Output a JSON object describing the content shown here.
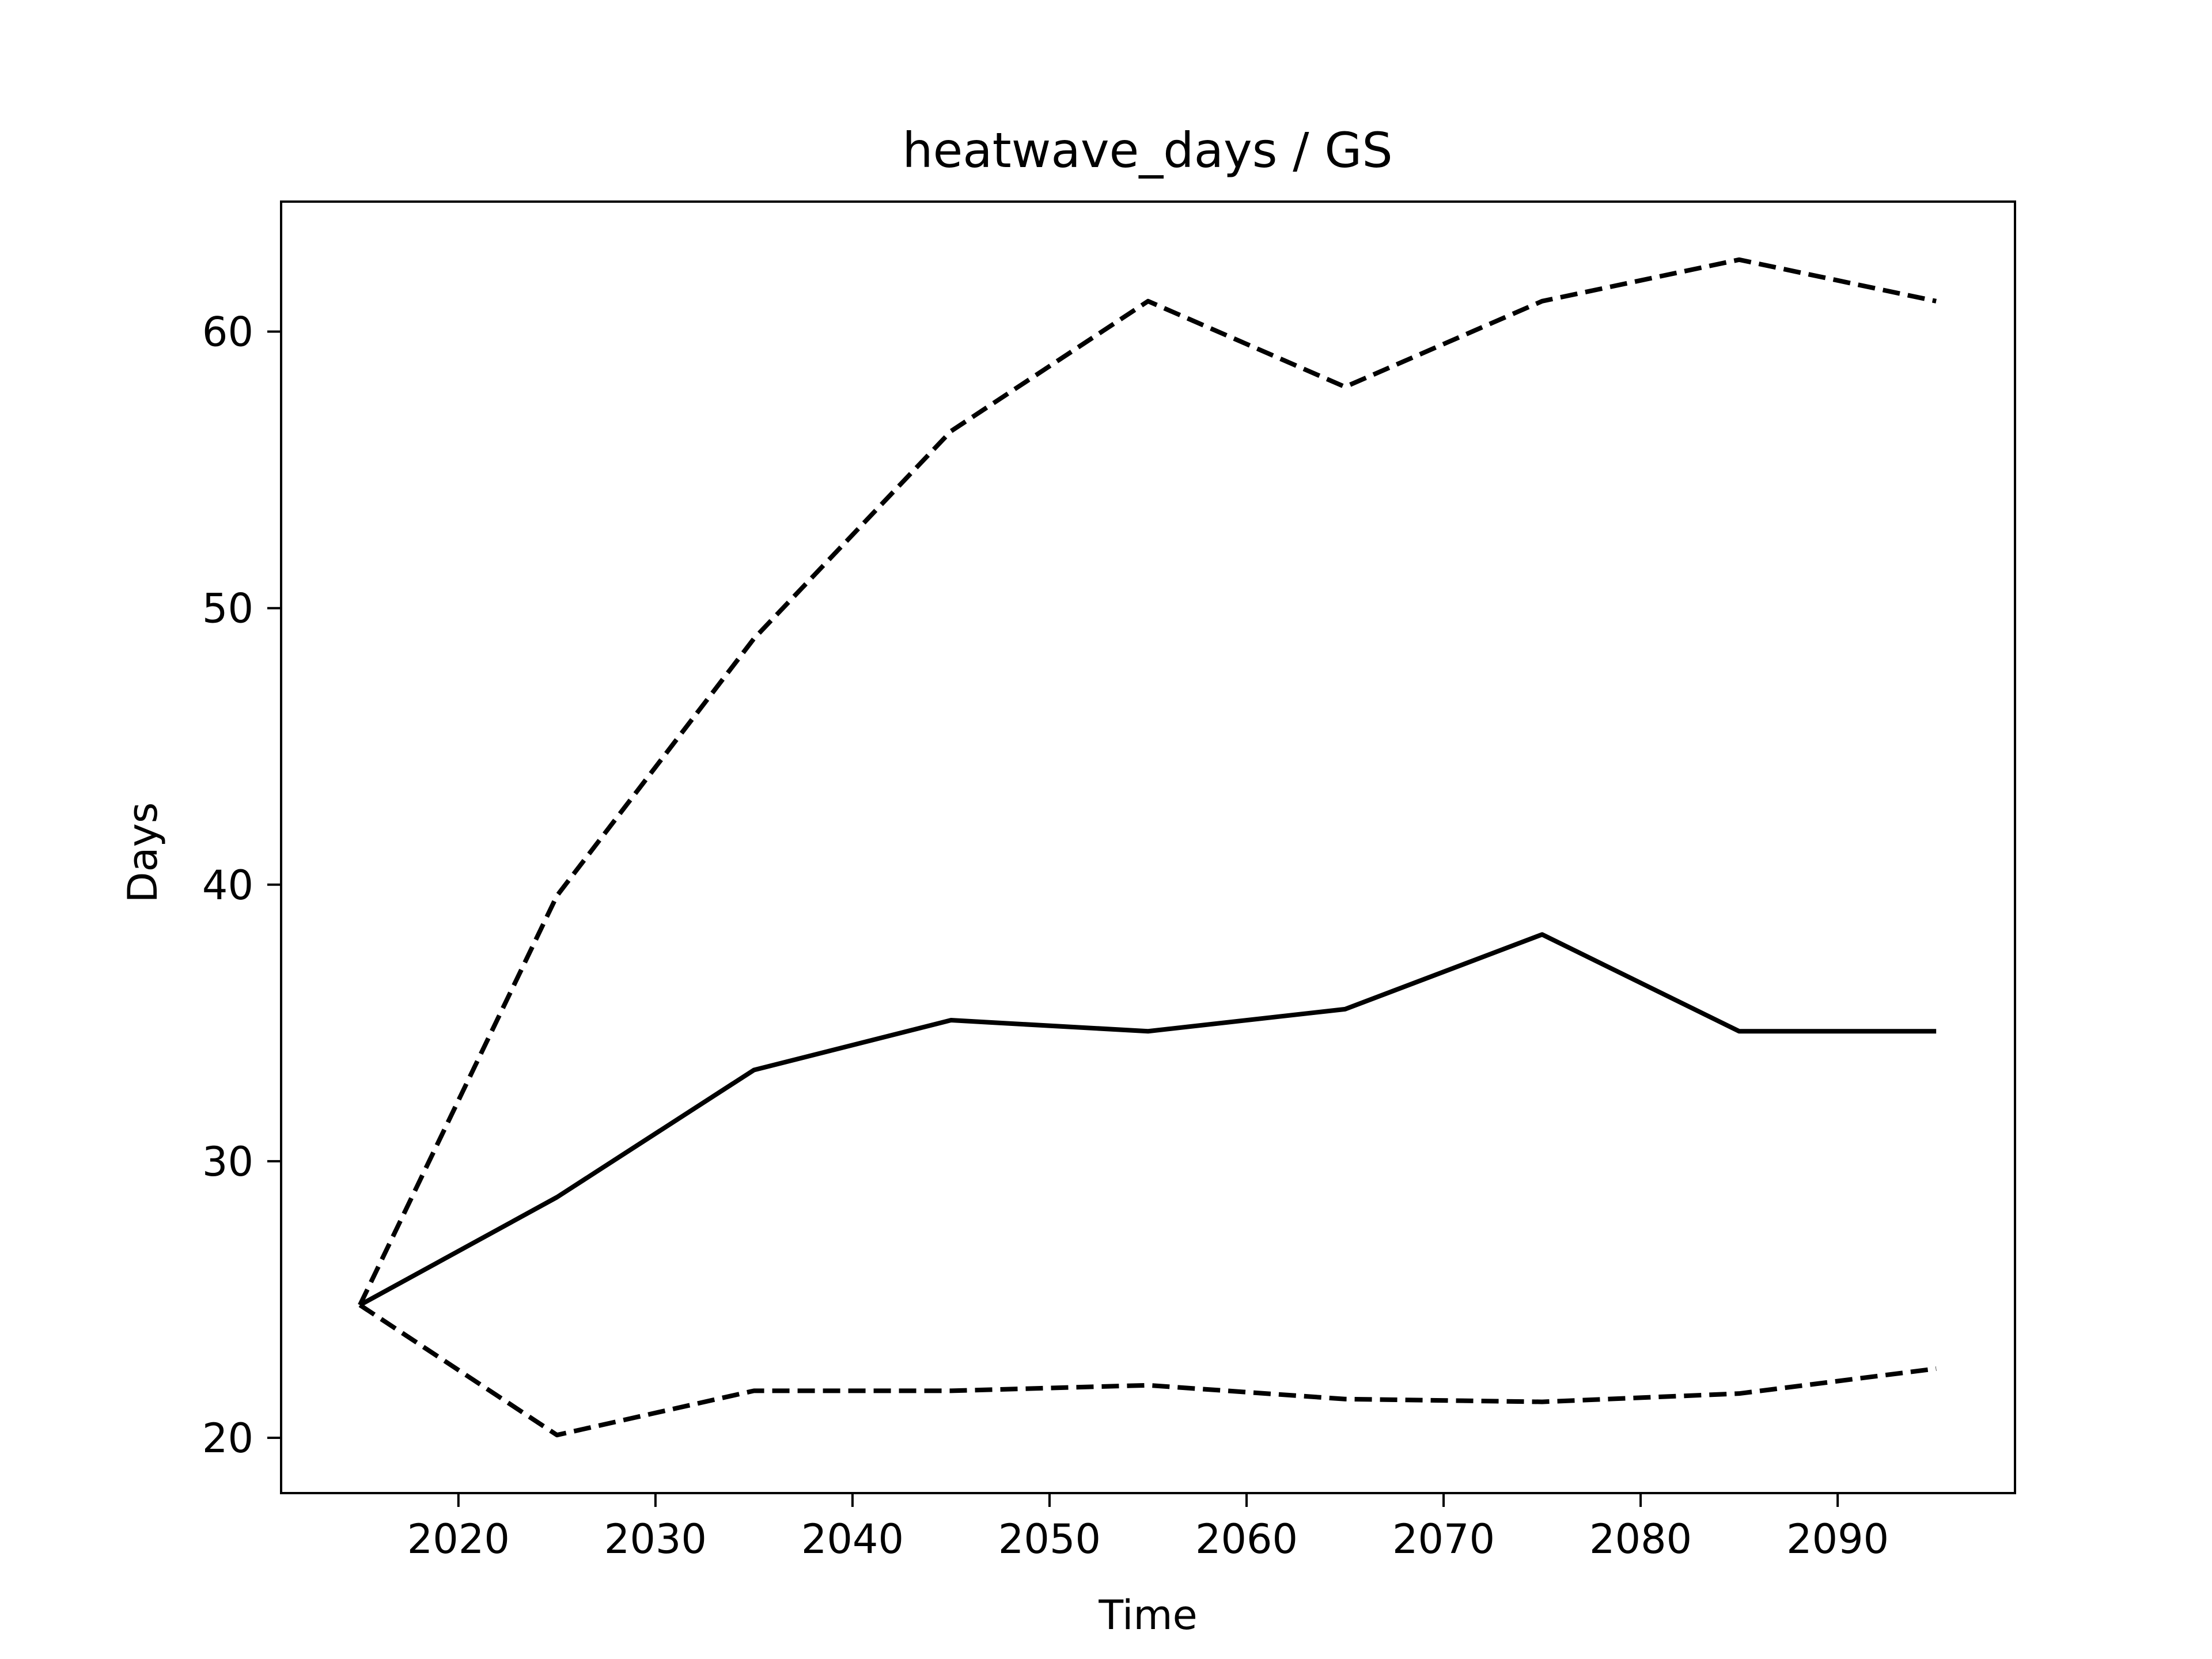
{
  "chart_data": {
    "type": "line",
    "title": "heatwave_days / GS",
    "xlabel": "Time",
    "ylabel": "Days",
    "xlim": [
      2011,
      2099
    ],
    "ylim": [
      18,
      64.7
    ],
    "xticks": [
      2020,
      2030,
      2040,
      2050,
      2060,
      2070,
      2080,
      2090
    ],
    "yticks": [
      20,
      30,
      40,
      50,
      60
    ],
    "grid": false,
    "legend": "none",
    "x": [
      2015,
      2025,
      2035,
      2045,
      2055,
      2065,
      2075,
      2085,
      2095
    ],
    "series": [
      {
        "style": "solid",
        "color": "#000000",
        "values": [
          24.8,
          28.7,
          33.3,
          35.1,
          34.7,
          35.5,
          38.2,
          34.7,
          34.7
        ]
      },
      {
        "style": "dashed",
        "color": "#000000",
        "values": [
          24.8,
          39.6,
          48.9,
          56.4,
          61.1,
          58.0,
          61.1,
          62.6,
          61.1
        ]
      },
      {
        "style": "dashed",
        "color": "#000000",
        "values": [
          24.8,
          20.1,
          21.7,
          21.7,
          21.9,
          21.4,
          21.3,
          21.6,
          22.5
        ]
      }
    ]
  }
}
